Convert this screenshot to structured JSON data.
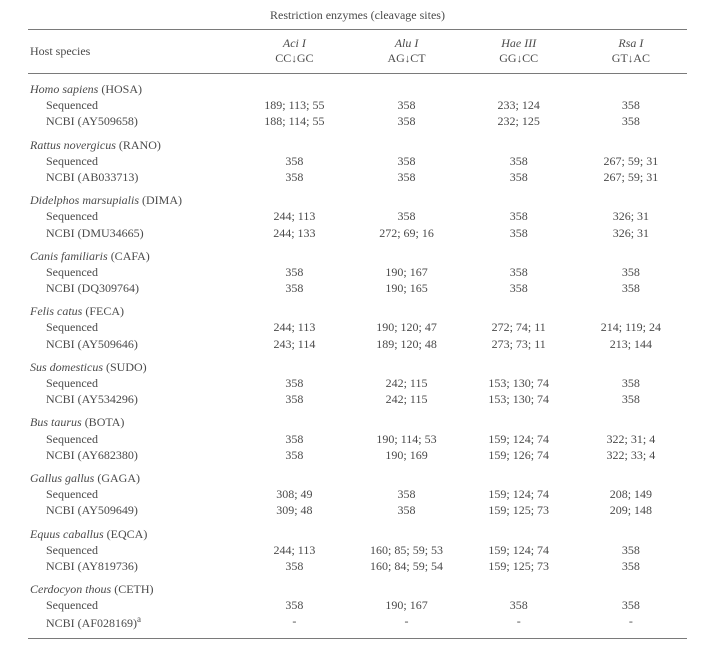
{
  "header": {
    "top_title": "Restriction enzymes (cleavage sites)",
    "col_host": "Host species",
    "enzymes": [
      {
        "name": "Aci I",
        "site_pre": "CC",
        "site_post": "GC"
      },
      {
        "name": "Alu I",
        "site_pre": "AG",
        "site_post": "CT"
      },
      {
        "name": "Hae III",
        "site_pre": "GG",
        "site_post": "CC"
      },
      {
        "name": "Rsa I",
        "site_pre": "GT",
        "site_post": "AC"
      }
    ]
  },
  "groups": [
    {
      "species": "Homo sapiens",
      "abbr": "(HOSA)",
      "rows": [
        {
          "label": "Sequenced",
          "vals": [
            "189; 113; 55",
            "358",
            "233; 124",
            "358"
          ]
        },
        {
          "label": "NCBI (AY509658)",
          "vals": [
            "188; 114; 55",
            "358",
            "232; 125",
            "358"
          ]
        }
      ]
    },
    {
      "species": "Rattus novergicus",
      "abbr": "(RANO)",
      "rows": [
        {
          "label": "Sequenced",
          "vals": [
            "358",
            "358",
            "358",
            "267; 59; 31"
          ]
        },
        {
          "label": "NCBI (AB033713)",
          "vals": [
            "358",
            "358",
            "358",
            "267; 59; 31"
          ]
        }
      ]
    },
    {
      "species": "Didelphos marsupialis",
      "abbr": "(DIMA)",
      "rows": [
        {
          "label": "Sequenced",
          "vals": [
            "244; 113",
            "358",
            "358",
            "326; 31"
          ]
        },
        {
          "label": "NCBI (DMU34665)",
          "vals": [
            "244; 133",
            "272; 69; 16",
            "358",
            "326; 31"
          ]
        }
      ]
    },
    {
      "species": "Canis familiaris",
      "abbr": "(CAFA)",
      "rows": [
        {
          "label": "Sequenced",
          "vals": [
            "358",
            "190; 167",
            "358",
            "358"
          ]
        },
        {
          "label": "NCBI (DQ309764)",
          "vals": [
            "358",
            "190; 165",
            "358",
            "358"
          ]
        }
      ]
    },
    {
      "species": "Felis catus",
      "abbr": "(FECA)",
      "rows": [
        {
          "label": "Sequenced",
          "vals": [
            "244; 113",
            "190; 120; 47",
            "272; 74; 11",
            "214; 119; 24"
          ]
        },
        {
          "label": "NCBI (AY509646)",
          "vals": [
            "243; 114",
            "189; 120; 48",
            "273; 73; 11",
            "213; 144"
          ]
        }
      ]
    },
    {
      "species": "Sus domesticus",
      "abbr": "(SUDO)",
      "rows": [
        {
          "label": "Sequenced",
          "vals": [
            "358",
            "242; 115",
            "153; 130; 74",
            "358"
          ]
        },
        {
          "label": "NCBI (AY534296)",
          "vals": [
            "358",
            "242; 115",
            "153; 130; 74",
            "358"
          ]
        }
      ]
    },
    {
      "species": "Bus taurus",
      "abbr": "(BOTA)",
      "rows": [
        {
          "label": "Sequenced",
          "vals": [
            "358",
            "190; 114; 53",
            "159; 124; 74",
            "322; 31; 4"
          ]
        },
        {
          "label": "NCBI (AY682380)",
          "vals": [
            "358",
            "190; 169",
            "159; 126; 74",
            "322; 33; 4"
          ]
        }
      ]
    },
    {
      "species": "Gallus gallus",
      "abbr": "(GAGA)",
      "rows": [
        {
          "label": "Sequenced",
          "vals": [
            "308; 49",
            "358",
            "159; 124; 74",
            "208; 149"
          ]
        },
        {
          "label": "NCBI (AY509649)",
          "vals": [
            "309; 48",
            "358",
            "159; 125; 73",
            "209; 148"
          ]
        }
      ]
    },
    {
      "species": "Equus caballus",
      "abbr": "(EQCA)",
      "rows": [
        {
          "label": "Sequenced",
          "vals": [
            "244; 113",
            "160; 85; 59; 53",
            "159; 124; 74",
            "358"
          ]
        },
        {
          "label": "NCBI (AY819736)",
          "vals": [
            "358",
            "160; 84; 59; 54",
            "159; 125; 73",
            "358"
          ]
        }
      ]
    },
    {
      "species": "Cerdocyon thous",
      "abbr": "(CETH)",
      "rows": [
        {
          "label": "Sequenced",
          "vals": [
            "358",
            "190; 167",
            "358",
            "358"
          ]
        },
        {
          "label": "NCBI (AF028169)",
          "sup": "a",
          "vals": [
            "-",
            "-",
            "-",
            "-"
          ]
        }
      ]
    }
  ]
}
